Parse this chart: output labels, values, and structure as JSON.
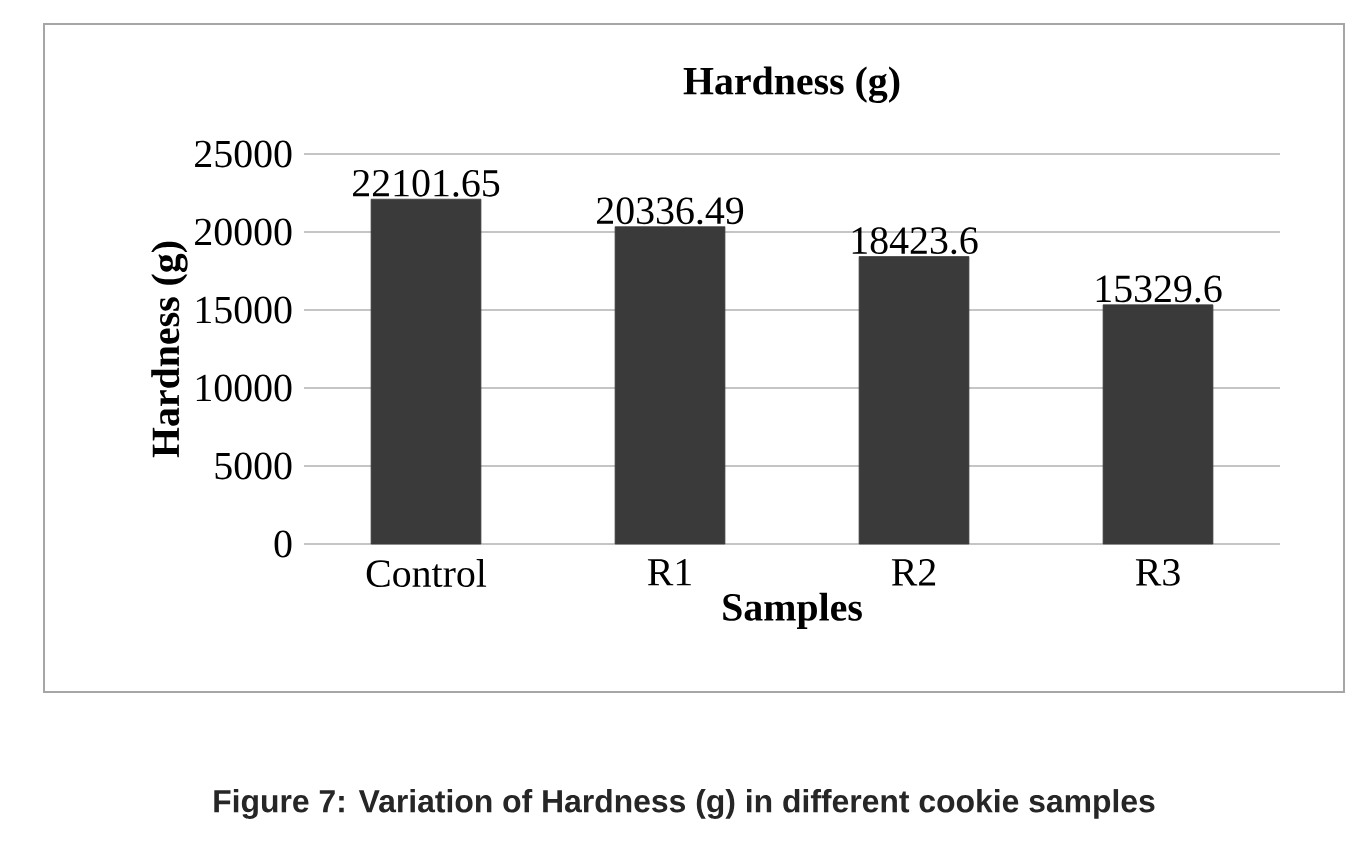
{
  "chart_data": {
    "type": "bar",
    "title": "Hardness (g)",
    "xlabel": "Samples",
    "ylabel": "Hardness (g)",
    "categories": [
      "Control",
      "R1",
      "R2",
      "R3"
    ],
    "values": [
      22101.65,
      20336.49,
      18423.6,
      15329.6
    ],
    "value_labels": [
      "22101.65",
      "20336.49",
      "18423.6",
      "15329.6"
    ],
    "color": "#3a3a3a",
    "ylim": [
      0,
      25000
    ],
    "yticks": [
      0,
      5000,
      10000,
      15000,
      20000,
      25000
    ],
    "grid": "y",
    "annotations": [
      "Figure 7: Variation of Hardness (g) in different cookie samples"
    ]
  }
}
